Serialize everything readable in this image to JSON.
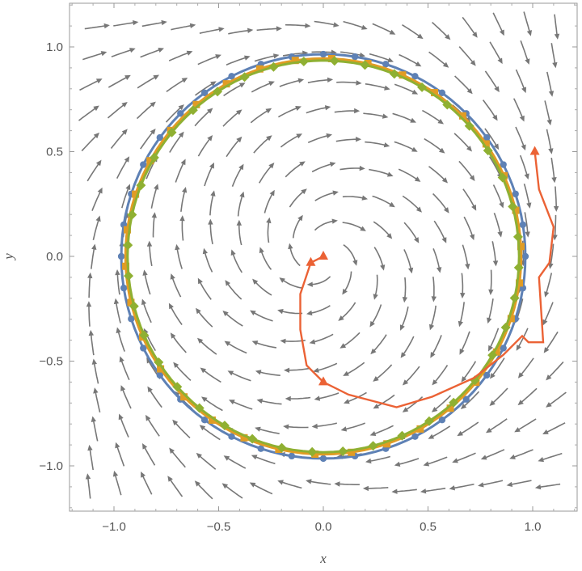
{
  "chart_data": {
    "type": "scatter",
    "xlabel": "x",
    "ylabel": "y",
    "xlim": [
      -1.22,
      1.22
    ],
    "ylim": [
      -1.22,
      1.22
    ],
    "xticks": [
      -1.0,
      -0.5,
      0.0,
      0.5,
      1.0
    ],
    "yticks": [
      -1.0,
      -0.5,
      0.0,
      0.5,
      1.0
    ],
    "xtick_labels": [
      "−1.0",
      "−0.5",
      "0.0",
      "0.5",
      "1.0"
    ],
    "ytick_labels": [
      "−1.0",
      "−0.5",
      "0.0",
      "0.5",
      "1.0"
    ],
    "grid": false,
    "background": "stream plot of a spiral vector field converging to a limit cycle of radius about 0.95",
    "series": [
      {
        "label": "blue",
        "color": "#5E81B5",
        "marker": "circle",
        "radius": 0.965,
        "points": 40
      },
      {
        "label": "orange",
        "color": "#E19C24",
        "marker": "square",
        "radius": 0.945,
        "points": 34
      },
      {
        "label": "green",
        "color": "#8FB032",
        "marker": "diamond",
        "radius": 0.935,
        "points": 40
      },
      {
        "label": "red",
        "color": "#EB6235",
        "marker": "triangle",
        "x": [
          0.0,
          -0.06,
          -0.11,
          -0.11,
          -0.08,
          0.0,
          0.12,
          0.35,
          0.52,
          0.72,
          0.86,
          0.95,
          0.98,
          1.05,
          1.03,
          1.08,
          1.1,
          1.03,
          1.01
        ],
        "y": [
          0.0,
          -0.03,
          -0.18,
          -0.35,
          -0.52,
          -0.6,
          -0.66,
          -0.72,
          -0.67,
          -0.58,
          -0.47,
          -0.38,
          -0.41,
          -0.41,
          -0.1,
          -0.03,
          0.14,
          0.32,
          0.5
        ]
      }
    ]
  }
}
